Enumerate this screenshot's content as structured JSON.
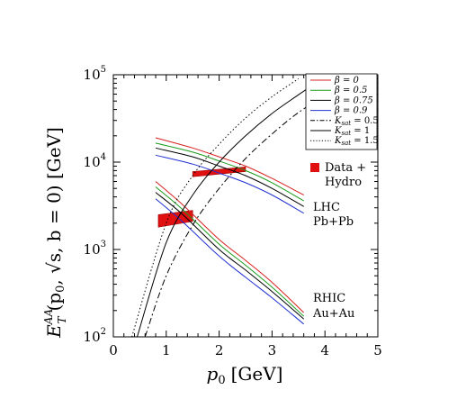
{
  "chart_data": {
    "type": "line",
    "xlabel_var": "p",
    "xlabel_sub": "0",
    "xlabel_unit": "[GeV]",
    "ylabel_main": "E",
    "ylabel_sup": "AA",
    "ylabel_sub": "T",
    "ylabel_args": "(p",
    "ylabel_args_sub": "0",
    "ylabel_args_rest": ", √s, b = 0) [GeV]",
    "xlim": [
      0,
      5
    ],
    "ylim": [
      100,
      100000
    ],
    "yscale": "log",
    "x_ticks": [
      "0",
      "1",
      "2",
      "3",
      "4",
      "5"
    ],
    "y_ticks": [
      {
        "base": "10",
        "exp": "2",
        "value": 100
      },
      {
        "base": "10",
        "exp": "3",
        "value": 1000
      },
      {
        "base": "10",
        "exp": "4",
        "value": 10000
      },
      {
        "base": "10",
        "exp": "5",
        "value": 100000
      }
    ],
    "colors": {
      "beta0": "#d62020",
      "beta05": "#1a9a1a",
      "beta075": "#000000",
      "beta09": "#2030d0"
    },
    "legend": {
      "position": "top-right",
      "entries": [
        {
          "label": "β = 0",
          "color": "#d62020",
          "style": "solid"
        },
        {
          "label": "β = 0.5",
          "color": "#1a9a1a",
          "style": "solid"
        },
        {
          "label": "β = 0.75",
          "color": "#000000",
          "style": "solid"
        },
        {
          "label": "β = 0.9",
          "color": "#2030d0",
          "style": "solid"
        },
        {
          "label": "K",
          "sub": "sat",
          "rest": " = 0.5",
          "color": "#000000",
          "style": "dashed"
        },
        {
          "label": "K",
          "sub": "sat",
          "rest": " = 1",
          "color": "#000000",
          "style": "solid"
        },
        {
          "label": "K",
          "sub": "sat",
          "rest": " = 1.5",
          "color": "#000000",
          "style": "dotted"
        }
      ]
    },
    "annotations": {
      "data_line1": "Data +",
      "data_line2": "Hydro",
      "lhc_line1": "LHC",
      "lhc_line2": "Pb+Pb",
      "rhic_line1": "RHIC",
      "rhic_line2": "Au+Au"
    },
    "lhc_series": [
      {
        "name": "β = 0",
        "color": "#d62020",
        "points": [
          [
            0.8,
            19000
          ],
          [
            1.5,
            14500
          ],
          [
            2.0,
            11500
          ],
          [
            2.5,
            9000
          ],
          [
            3.0,
            6500
          ],
          [
            3.6,
            4200
          ]
        ]
      },
      {
        "name": "β = 0.5",
        "color": "#1a9a1a",
        "points": [
          [
            0.8,
            16500
          ],
          [
            1.5,
            13000
          ],
          [
            2.0,
            10300
          ],
          [
            2.5,
            8000
          ],
          [
            3.0,
            5800
          ],
          [
            3.6,
            3600
          ]
        ]
      },
      {
        "name": "β = 0.75",
        "color": "#000000",
        "points": [
          [
            0.8,
            14500
          ],
          [
            1.5,
            11500
          ],
          [
            2.0,
            9000
          ],
          [
            2.5,
            7000
          ],
          [
            3.0,
            5000
          ],
          [
            3.6,
            3100
          ]
        ]
      },
      {
        "name": "β = 0.9",
        "color": "#2030d0",
        "points": [
          [
            0.8,
            12000
          ],
          [
            1.5,
            9500
          ],
          [
            2.0,
            7500
          ],
          [
            2.5,
            5800
          ],
          [
            3.0,
            4200
          ],
          [
            3.6,
            2600
          ]
        ]
      }
    ],
    "rhic_series": [
      {
        "name": "β = 0",
        "color": "#d62020",
        "points": [
          [
            0.8,
            6000
          ],
          [
            1.3,
            3300
          ],
          [
            2.0,
            1300
          ],
          [
            2.5,
            750
          ],
          [
            3.0,
            420
          ],
          [
            3.6,
            190
          ]
        ]
      },
      {
        "name": "β = 0.5",
        "color": "#1a9a1a",
        "points": [
          [
            0.8,
            5200
          ],
          [
            1.3,
            2900
          ],
          [
            2.0,
            1150
          ],
          [
            2.5,
            660
          ],
          [
            3.0,
            370
          ],
          [
            3.6,
            172
          ]
        ]
      },
      {
        "name": "β = 0.75",
        "color": "#000000",
        "points": [
          [
            0.8,
            4500
          ],
          [
            1.3,
            2550
          ],
          [
            2.0,
            1000
          ],
          [
            2.5,
            580
          ],
          [
            3.0,
            330
          ],
          [
            3.6,
            160
          ]
        ]
      },
      {
        "name": "β = 0.9",
        "color": "#2030d0",
        "points": [
          [
            0.8,
            3800
          ],
          [
            1.3,
            2100
          ],
          [
            2.0,
            840
          ],
          [
            2.5,
            480
          ],
          [
            3.0,
            280
          ],
          [
            3.6,
            140
          ]
        ]
      }
    ],
    "ksat_series": [
      {
        "name": "K_sat = 0.5",
        "style": "dashed",
        "points": [
          [
            0.6,
            100
          ],
          [
            1.0,
            500
          ],
          [
            1.5,
            1900
          ],
          [
            2.0,
            5000
          ],
          [
            2.5,
            11000
          ],
          [
            3.0,
            21000
          ],
          [
            3.5,
            37000
          ],
          [
            4.0,
            58000
          ]
        ]
      },
      {
        "name": "K_sat = 1",
        "style": "solid",
        "points": [
          [
            0.45,
            100
          ],
          [
            1.0,
            1200
          ],
          [
            1.5,
            4200
          ],
          [
            2.0,
            10000
          ],
          [
            2.5,
            20000
          ],
          [
            3.0,
            36000
          ],
          [
            3.5,
            59000
          ],
          [
            3.8,
            78000
          ]
        ]
      },
      {
        "name": "K_sat = 1.5",
        "style": "dotted",
        "points": [
          [
            0.35,
            100
          ],
          [
            1.0,
            2000
          ],
          [
            1.5,
            7000
          ],
          [
            2.0,
            16000
          ],
          [
            2.5,
            32000
          ],
          [
            3.0,
            56000
          ],
          [
            3.5,
            90000
          ]
        ]
      }
    ],
    "data_bands": [
      {
        "name": "RHIC data",
        "x_low": 0.85,
        "x_high": 1.5,
        "left": [
          1800,
          2500
        ],
        "right": [
          2100,
          2800
        ]
      },
      {
        "name": "LHC data",
        "x_low": 1.5,
        "x_high": 2.5,
        "left": [
          6800,
          7800
        ],
        "right": [
          7800,
          8800
        ]
      }
    ]
  }
}
